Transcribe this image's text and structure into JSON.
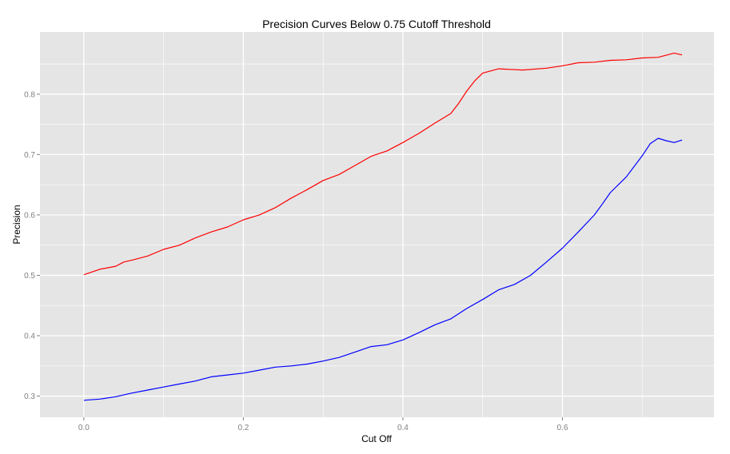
{
  "chart_data": {
    "type": "line",
    "title": "Precision Curves Below 0.75 Cutoff Threshold",
    "xlabel": "Cut Off",
    "ylabel": "Precision",
    "xlim": [
      -0.055,
      0.79
    ],
    "ylim": [
      0.265,
      0.903
    ],
    "x_ticks": [
      0.0,
      0.2,
      0.4,
      0.6
    ],
    "x_tick_labels": [
      "0.0",
      "0.2",
      "0.4",
      "0.6"
    ],
    "y_ticks": [
      0.3,
      0.4,
      0.5,
      0.6,
      0.7,
      0.8
    ],
    "y_tick_labels": [
      "0.3",
      "0.4",
      "0.5",
      "0.6",
      "0.7",
      "0.8"
    ],
    "grid": true,
    "legend": "none",
    "panel_color": "#e5e5e5",
    "grid_color": "#ffffff",
    "series": [
      {
        "color": "#ff0000",
        "x": [
          0.0,
          0.02,
          0.04,
          0.05,
          0.06,
          0.08,
          0.1,
          0.12,
          0.14,
          0.16,
          0.18,
          0.2,
          0.22,
          0.24,
          0.26,
          0.28,
          0.3,
          0.32,
          0.34,
          0.36,
          0.38,
          0.4,
          0.42,
          0.44,
          0.46,
          0.47,
          0.48,
          0.49,
          0.5,
          0.52,
          0.55,
          0.58,
          0.6,
          0.62,
          0.64,
          0.66,
          0.68,
          0.7,
          0.72,
          0.74,
          0.75
        ],
        "y": [
          0.501,
          0.51,
          0.515,
          0.522,
          0.525,
          0.532,
          0.543,
          0.55,
          0.562,
          0.572,
          0.58,
          0.592,
          0.6,
          0.612,
          0.628,
          0.642,
          0.657,
          0.667,
          0.682,
          0.697,
          0.706,
          0.72,
          0.735,
          0.752,
          0.768,
          0.785,
          0.805,
          0.822,
          0.835,
          0.842,
          0.84,
          0.843,
          0.847,
          0.852,
          0.853,
          0.856,
          0.857,
          0.86,
          0.861,
          0.868,
          0.865
        ]
      },
      {
        "color": "#0000ff",
        "x": [
          0.0,
          0.02,
          0.04,
          0.06,
          0.08,
          0.1,
          0.12,
          0.14,
          0.16,
          0.18,
          0.2,
          0.22,
          0.24,
          0.26,
          0.28,
          0.3,
          0.32,
          0.34,
          0.36,
          0.38,
          0.4,
          0.42,
          0.44,
          0.46,
          0.48,
          0.5,
          0.52,
          0.54,
          0.56,
          0.58,
          0.6,
          0.62,
          0.64,
          0.65,
          0.66,
          0.68,
          0.7,
          0.71,
          0.72,
          0.73,
          0.74,
          0.75
        ],
        "y": [
          0.293,
          0.295,
          0.299,
          0.305,
          0.31,
          0.315,
          0.32,
          0.325,
          0.332,
          0.335,
          0.338,
          0.343,
          0.348,
          0.35,
          0.353,
          0.358,
          0.364,
          0.373,
          0.382,
          0.385,
          0.393,
          0.405,
          0.418,
          0.428,
          0.445,
          0.46,
          0.476,
          0.485,
          0.5,
          0.522,
          0.545,
          0.572,
          0.6,
          0.618,
          0.637,
          0.663,
          0.698,
          0.718,
          0.727,
          0.723,
          0.72,
          0.724
        ]
      }
    ]
  }
}
